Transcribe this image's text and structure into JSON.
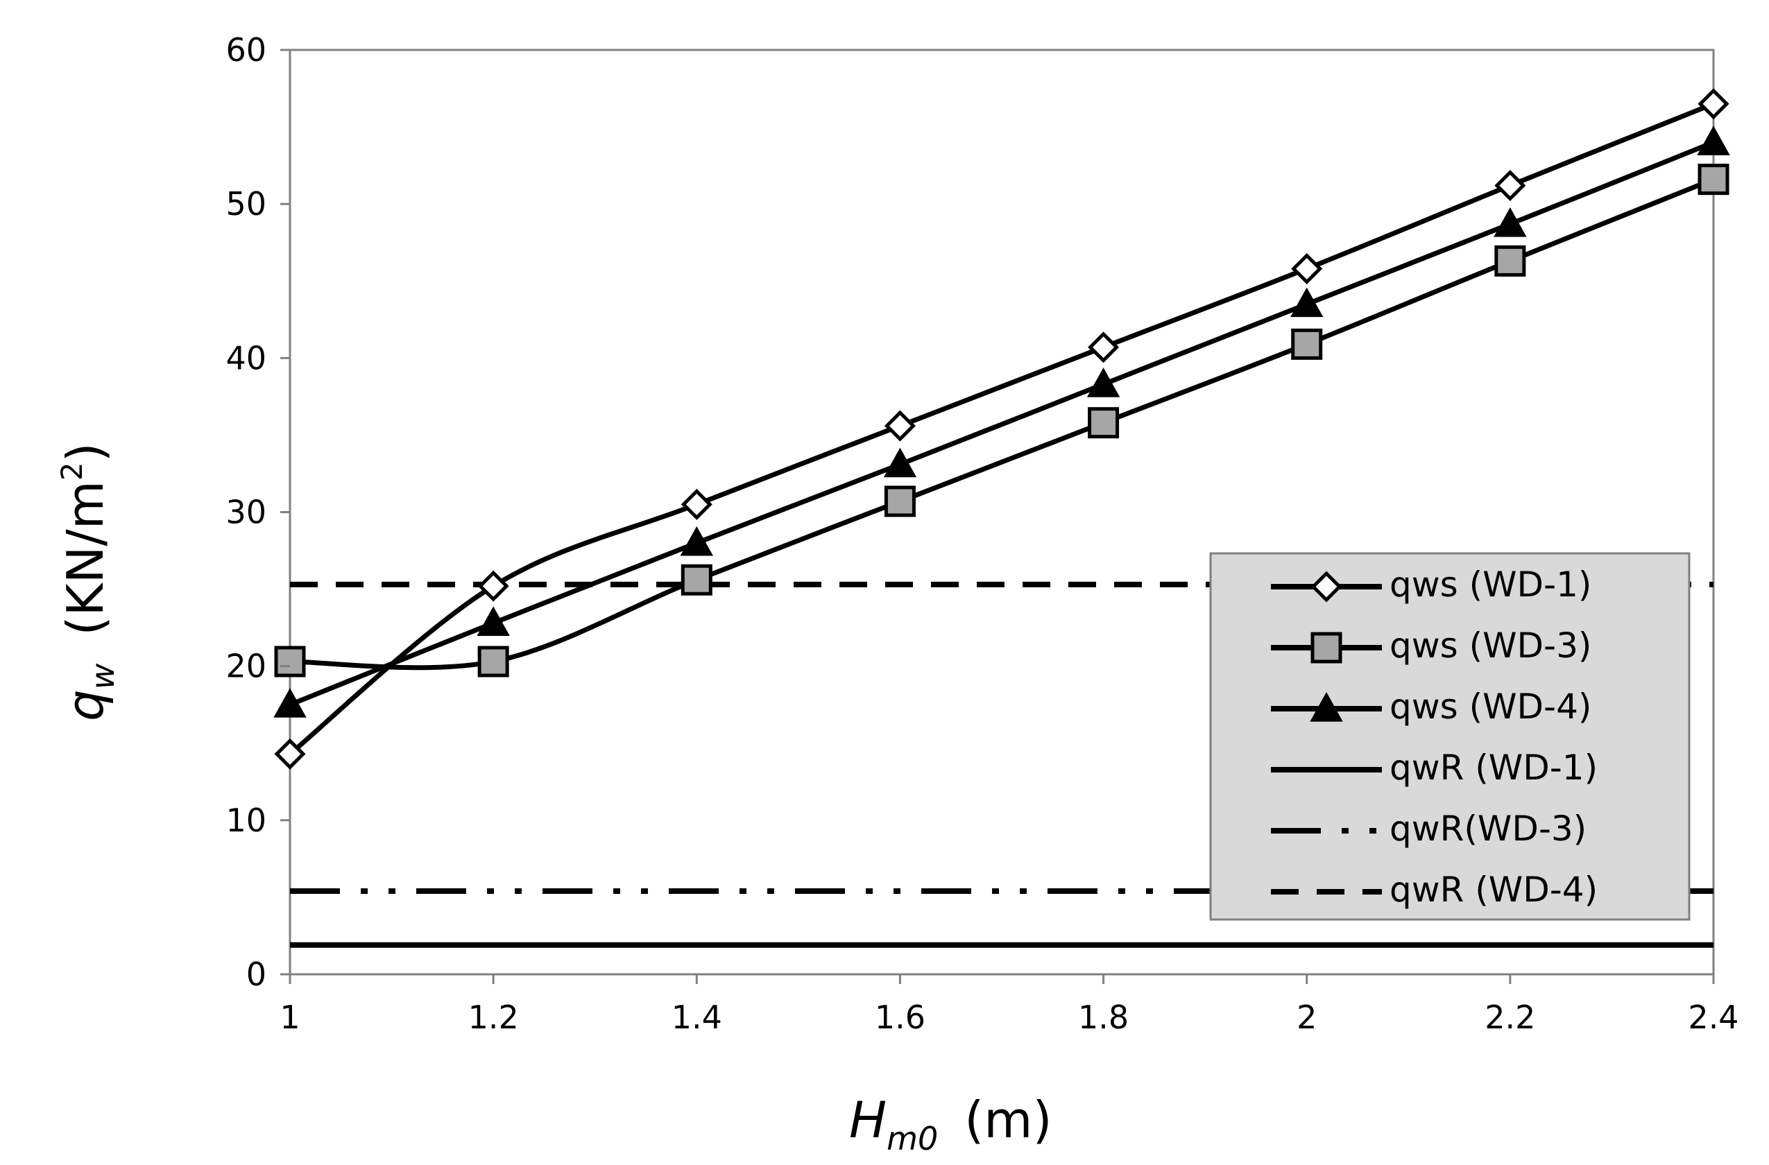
{
  "chart_data": {
    "type": "line",
    "title": "",
    "x": [
      1,
      1.2,
      1.4,
      1.6,
      1.8,
      2,
      2.2,
      2.4
    ],
    "xlim": [
      1,
      2.4
    ],
    "ylim": [
      0,
      60
    ],
    "x_ticks": [
      "1",
      "1.2",
      "1.4",
      "1.6",
      "1.8",
      "2",
      "2.2",
      "2.4"
    ],
    "y_ticks": [
      "0",
      "10",
      "20",
      "30",
      "40",
      "50",
      "60"
    ],
    "xlabel": {
      "symbol": "H",
      "subscript": "m0",
      "unit": "(m)"
    },
    "ylabel": {
      "symbol": "q",
      "subscript": "w",
      "unit_prefix": "(KN/m",
      "unit_sup": "2",
      "unit_suffix": ")"
    },
    "grid": false,
    "legend_position": "bottom-right",
    "series": [
      {
        "name": "qws (WD-1)",
        "values": [
          14.3,
          25.2,
          30.5,
          35.6,
          40.7,
          45.8,
          51.2,
          56.5
        ],
        "marker": "diamond-open",
        "line": "solid",
        "smooth": true
      },
      {
        "name": "qws (WD-3)",
        "values": [
          20.3,
          20.3,
          25.6,
          30.7,
          35.8,
          40.9,
          46.3,
          51.6
        ],
        "marker": "square-gray",
        "line": "solid",
        "smooth": true
      },
      {
        "name": "qws (WD-4)",
        "values": [
          17.5,
          22.8,
          28.0,
          33.1,
          38.3,
          43.5,
          48.7,
          54.0
        ],
        "marker": "triangle-filled",
        "line": "solid",
        "smooth": true
      },
      {
        "name": "qwR (WD-1)",
        "constant": 1.9,
        "marker": "none",
        "line": "solid"
      },
      {
        "name": "qwR(WD-3)",
        "constant": 5.4,
        "marker": "none",
        "line": "dash-dot-dot"
      },
      {
        "name": "qwR (WD-4)",
        "constant": 25.3,
        "marker": "none",
        "line": "dashed"
      }
    ],
    "colors": {
      "line": "#000000",
      "marker_gray": "#a6a6a6",
      "legend_bg": "#d9d9d9",
      "axis_frame": "#808080"
    }
  }
}
